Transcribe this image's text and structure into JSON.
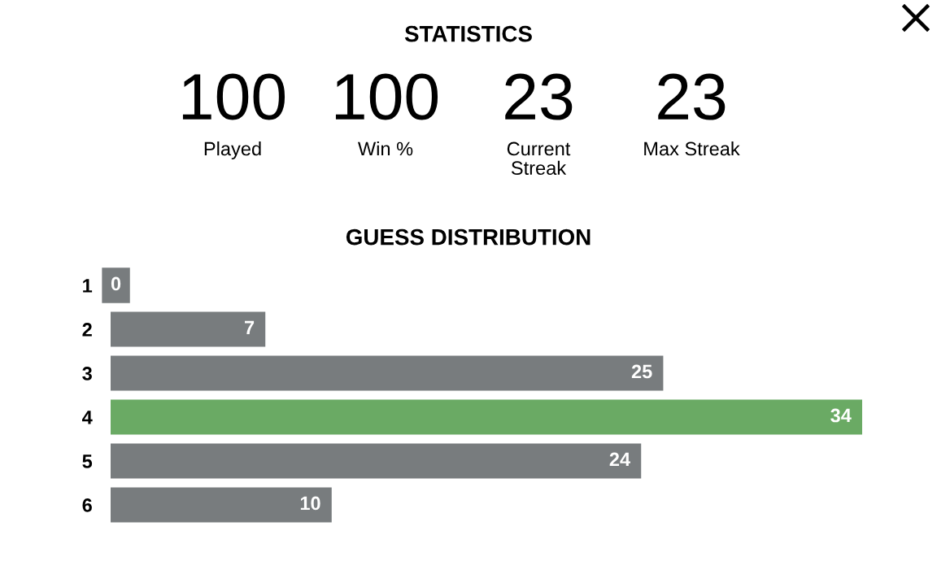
{
  "chart_data": [
    {
      "type": "other",
      "title": "STATISTICS",
      "annotations": [
        "100",
        "Played",
        "100",
        "Win %",
        "23",
        "Current\nStreak",
        "23",
        "Max Streak"
      ]
    },
    {
      "type": "bar",
      "title": "GUESS DISTRIBUTION",
      "orientation": "horizontal",
      "categories": [
        "1",
        "2",
        "3",
        "4",
        "5",
        "6"
      ],
      "values": [
        0,
        7,
        25,
        34,
        24,
        10
      ],
      "colors": [
        "#787c7e",
        "#787c7e",
        "#787c7e",
        "#6aaa64",
        "#787c7e",
        "#787c7e"
      ],
      "data_labels": true,
      "tick_labels": "y",
      "grid": false,
      "legend": false
    }
  ]
}
